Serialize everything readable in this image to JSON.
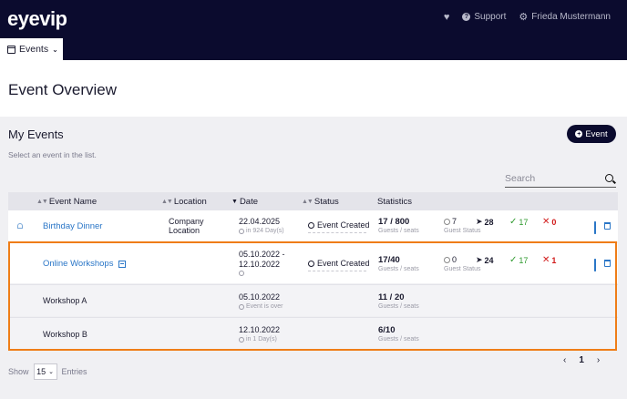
{
  "header": {
    "logo": "eyevip",
    "favorites_icon": "heart-icon",
    "support_label": "Support",
    "user_name": "Frieda Mustermann",
    "nav_tab": "Events"
  },
  "page": {
    "title": "Event Overview"
  },
  "list": {
    "title": "My Events",
    "hint": "Select an event in the list.",
    "add_button": "Event",
    "search_placeholder": "Search"
  },
  "table": {
    "columns": {
      "name": "Event Name",
      "location": "Location",
      "date": "Date",
      "status": "Status",
      "statistics": "Statistics"
    },
    "rows": [
      {
        "name": "Birthday Dinner",
        "location": "Company Location",
        "date": "22.04.2025",
        "date_note": "in 924 Day(s)",
        "status": "Event Created",
        "seats": "17 / 800",
        "seats_label": "Guests / seats",
        "open": "7",
        "sent": "28",
        "guest_status_label": "Guest Status",
        "accepted": "17",
        "declined": "0"
      },
      {
        "name": "Online Workshops",
        "location": "",
        "date": "05.10.2022 - 12.10.2022",
        "date_note": "",
        "status": "Event Created",
        "seats": "17/40",
        "seats_label": "Guests / seats",
        "open": "0",
        "sent": "24",
        "guest_status_label": "Guest Status",
        "accepted": "17",
        "declined": "1"
      },
      {
        "name": "Workshop A",
        "date": "05.10.2022",
        "date_note": "Event is over",
        "seats": "11 / 20",
        "seats_label": "Guests / seats"
      },
      {
        "name": "Workshop B",
        "date": "12.10.2022",
        "date_note": "in 1 Day(s)",
        "seats": "6/10",
        "seats_label": "Guests / seats"
      }
    ]
  },
  "footer": {
    "show_label": "Show",
    "page_size": "15",
    "entries_label": "Entries",
    "current_page": "1"
  },
  "colors": {
    "navy": "#0b0b2e",
    "link": "#2a76c7",
    "highlight": "#ef7d17",
    "accepted": "#2f9a2f",
    "declined": "#d11a1a"
  }
}
